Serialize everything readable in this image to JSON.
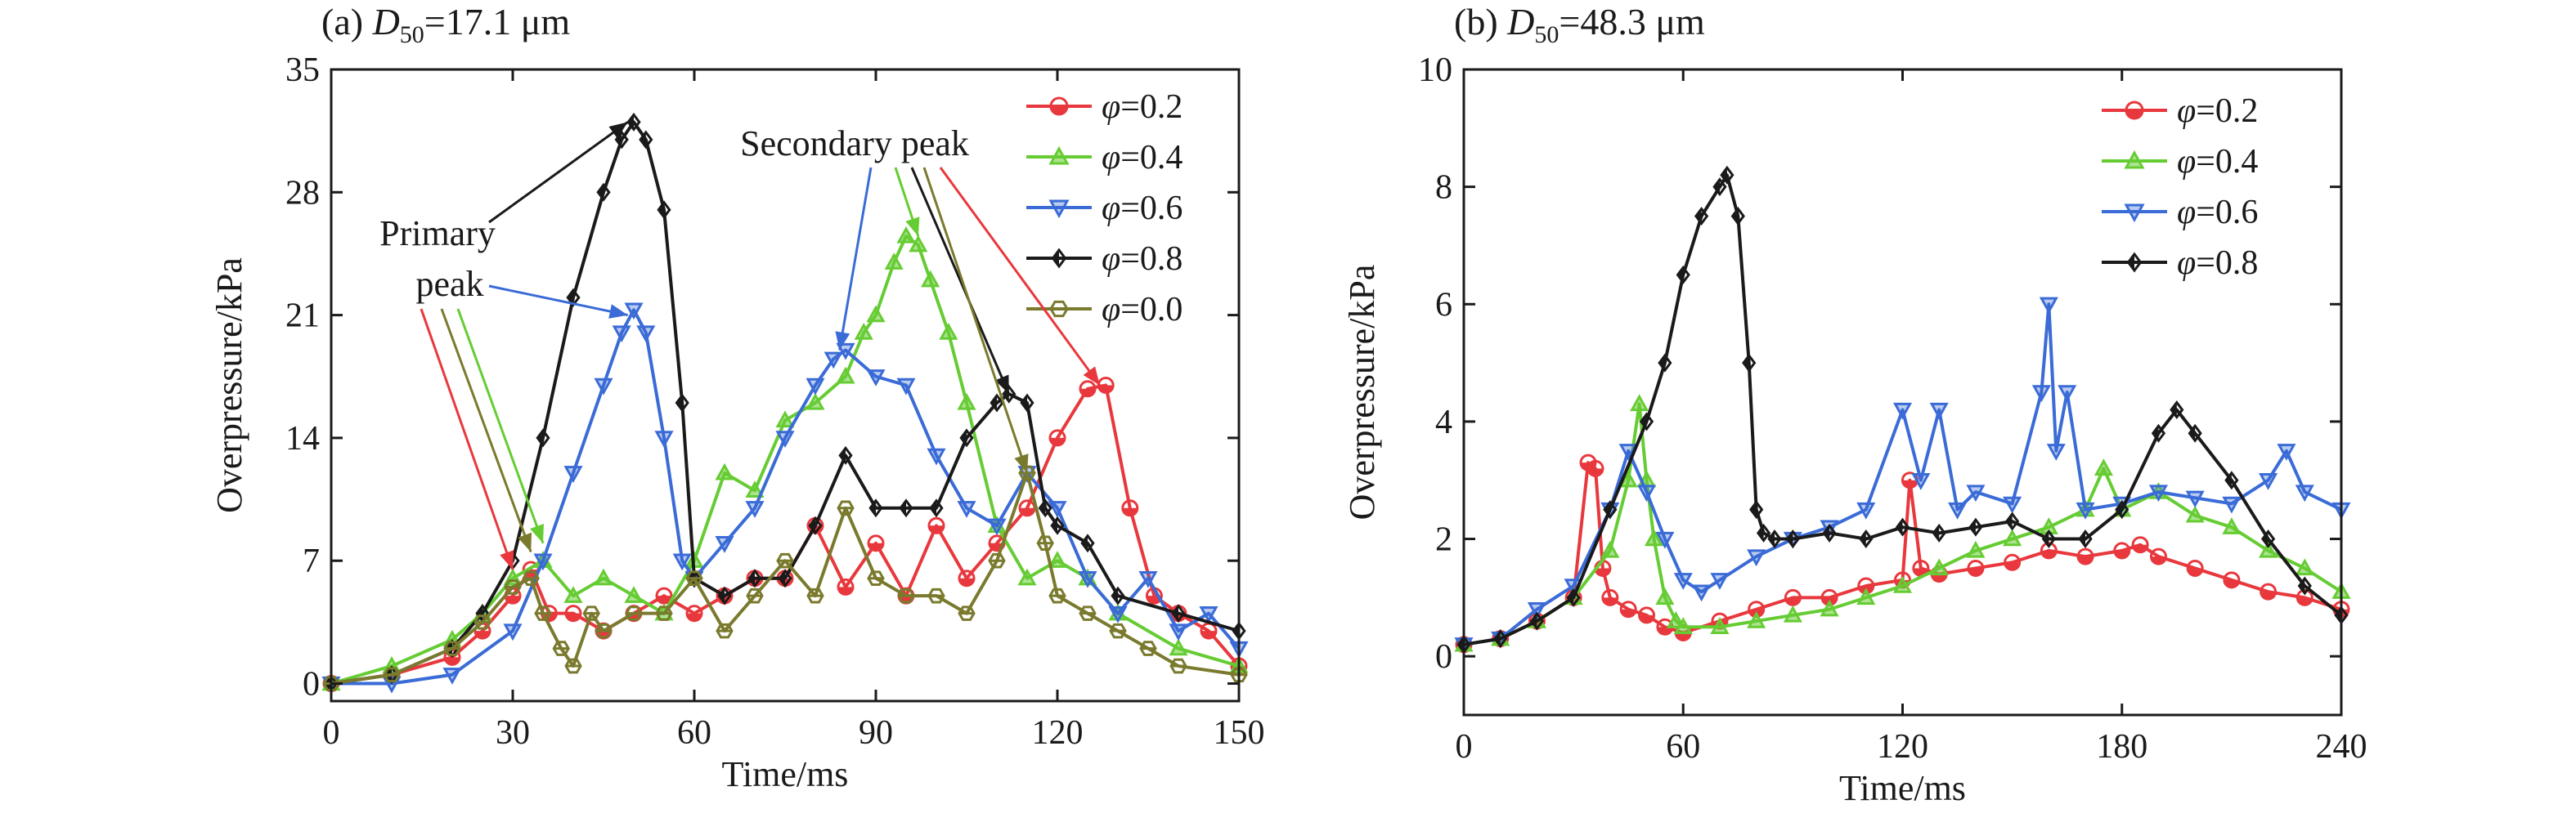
{
  "chart_data": [
    {
      "type": "line",
      "title_prefix": "(a)",
      "title_var": "D",
      "title_sub": "50",
      "title_value": "=17.1 μm",
      "xlabel": "Time/ms",
      "ylabel": "Overpressure/kPa",
      "xlim": [
        0,
        150
      ],
      "ylim": [
        -1,
        35
      ],
      "xticks": [
        0,
        30,
        60,
        90,
        120,
        150
      ],
      "yticks": [
        0,
        7,
        14,
        21,
        28,
        35
      ],
      "legend_position": "top-right",
      "annotations": [
        {
          "text": "Primary",
          "id": "primary-1"
        },
        {
          "text": "peak",
          "id": "primary-2"
        },
        {
          "text": "Secondary peak",
          "id": "secondary"
        }
      ],
      "series": [
        {
          "name": "φ=0.2",
          "symbol": "φ",
          "value_text": "=0.2",
          "marker": "circle",
          "color": "#e8383d",
          "x": [
            0,
            10,
            20,
            25,
            30,
            33,
            36,
            40,
            45,
            50,
            55,
            60,
            65,
            70,
            75,
            80,
            85,
            90,
            95,
            100,
            105,
            110,
            115,
            120,
            125,
            128,
            132,
            136,
            140,
            145,
            150
          ],
          "y": [
            0,
            0.5,
            1.5,
            3,
            5,
            6.5,
            4,
            4,
            3,
            4,
            5,
            4,
            5,
            6,
            6,
            9,
            5.5,
            8,
            5,
            9,
            6,
            8,
            10,
            14,
            16.8,
            17,
            10,
            5,
            4,
            3,
            1
          ]
        },
        {
          "name": "φ=0.4",
          "symbol": "φ",
          "value_text": "=0.4",
          "marker": "triangle-up",
          "color": "#66cc33",
          "x": [
            0,
            10,
            20,
            25,
            30,
            35,
            40,
            45,
            50,
            55,
            60,
            65,
            70,
            75,
            80,
            85,
            88,
            90,
            93,
            95,
            97,
            99,
            102,
            105,
            110,
            115,
            120,
            125,
            130,
            140,
            150
          ],
          "y": [
            0,
            1,
            2.5,
            4,
            6,
            7,
            5,
            6,
            5,
            4,
            7,
            12,
            11,
            15,
            16,
            17.5,
            20,
            21,
            24,
            25.5,
            25,
            23,
            20,
            16,
            9,
            6,
            7,
            6,
            4,
            2,
            1
          ]
        },
        {
          "name": "φ=0.6",
          "symbol": "φ",
          "value_text": "=0.6",
          "marker": "triangle-down",
          "color": "#3a6bd6",
          "x": [
            0,
            10,
            20,
            30,
            35,
            40,
            45,
            48,
            50,
            52,
            55,
            58,
            60,
            65,
            70,
            75,
            80,
            83,
            85,
            90,
            95,
            100,
            105,
            110,
            115,
            120,
            125,
            130,
            135,
            140,
            145,
            150
          ],
          "y": [
            0,
            0,
            0.5,
            3,
            7,
            12,
            17,
            20,
            21.3,
            20,
            14,
            7,
            6,
            8,
            10,
            14,
            17,
            18.5,
            19,
            17.5,
            17,
            13,
            10,
            9,
            12,
            10,
            6,
            4,
            6,
            3,
            4,
            2
          ]
        },
        {
          "name": "φ=0.8",
          "symbol": "φ",
          "value_text": "=0.8",
          "marker": "diamond",
          "color": "#1a1a1a",
          "x": [
            0,
            10,
            20,
            25,
            30,
            35,
            40,
            45,
            48,
            50,
            52,
            55,
            58,
            60,
            65,
            70,
            75,
            80,
            85,
            90,
            95,
            100,
            105,
            110,
            112,
            115,
            118,
            120,
            125,
            130,
            140,
            150
          ],
          "y": [
            0,
            0.5,
            2,
            4,
            7,
            14,
            22,
            28,
            31,
            32,
            31,
            27,
            16,
            6,
            5,
            6,
            6,
            9,
            13,
            10,
            10,
            10,
            14,
            16,
            16.5,
            16,
            10,
            9,
            8,
            5,
            4,
            3
          ]
        },
        {
          "name": "φ=0.0",
          "symbol": "φ",
          "value_text": "=0.0",
          "marker": "hexagon",
          "color": "#7a7a2e",
          "x": [
            0,
            10,
            20,
            25,
            30,
            33,
            35,
            38,
            40,
            43,
            45,
            50,
            55,
            60,
            65,
            70,
            75,
            80,
            85,
            90,
            95,
            100,
            105,
            110,
            115,
            118,
            120,
            125,
            130,
            135,
            140,
            150
          ],
          "y": [
            0,
            0.5,
            2,
            3.5,
            5.5,
            6,
            4,
            2,
            1,
            4,
            3,
            4,
            4,
            6,
            3,
            5,
            7,
            5,
            10,
            6,
            5,
            5,
            4,
            7,
            12,
            8,
            5,
            4,
            3,
            2,
            1,
            0.5
          ]
        }
      ]
    },
    {
      "type": "line",
      "title_prefix": "(b)",
      "title_var": "D",
      "title_sub": "50",
      "title_value": "=48.3 μm",
      "xlabel": "Time/ms",
      "ylabel": "Overpressure/kPa",
      "xlim": [
        0,
        240
      ],
      "ylim": [
        -1,
        10
      ],
      "xticks": [
        0,
        60,
        120,
        180,
        240
      ],
      "yticks": [
        0,
        2,
        4,
        6,
        8,
        10
      ],
      "legend_position": "top-right",
      "series": [
        {
          "name": "φ=0.2",
          "symbol": "φ",
          "value_text": "=0.2",
          "marker": "circle",
          "color": "#e8383d",
          "x": [
            0,
            10,
            20,
            30,
            34,
            36,
            38,
            40,
            45,
            50,
            55,
            60,
            70,
            80,
            90,
            100,
            110,
            120,
            122,
            125,
            130,
            140,
            150,
            160,
            170,
            180,
            185,
            190,
            200,
            210,
            220,
            230,
            240
          ],
          "y": [
            0.2,
            0.3,
            0.6,
            1,
            3.3,
            3.2,
            1.5,
            1,
            0.8,
            0.7,
            0.5,
            0.4,
            0.6,
            0.8,
            1,
            1,
            1.2,
            1.3,
            3.0,
            1.5,
            1.4,
            1.5,
            1.6,
            1.8,
            1.7,
            1.8,
            1.9,
            1.7,
            1.5,
            1.3,
            1.1,
            1,
            0.8
          ]
        },
        {
          "name": "φ=0.4",
          "symbol": "φ",
          "value_text": "=0.4",
          "marker": "triangle-up",
          "color": "#66cc33",
          "x": [
            0,
            10,
            20,
            30,
            40,
            45,
            48,
            50,
            52,
            55,
            58,
            60,
            70,
            80,
            90,
            100,
            110,
            120,
            130,
            140,
            150,
            160,
            170,
            175,
            180,
            190,
            200,
            210,
            220,
            230,
            240
          ],
          "y": [
            0.2,
            0.3,
            0.6,
            1,
            1.8,
            3,
            4.3,
            3,
            2,
            1,
            0.6,
            0.5,
            0.5,
            0.6,
            0.7,
            0.8,
            1,
            1.2,
            1.5,
            1.8,
            2,
            2.2,
            2.5,
            3.2,
            2.5,
            2.8,
            2.4,
            2.2,
            1.8,
            1.5,
            1.1
          ]
        },
        {
          "name": "φ=0.6",
          "symbol": "φ",
          "value_text": "=0.6",
          "marker": "triangle-down",
          "color": "#3a6bd6",
          "x": [
            0,
            10,
            20,
            30,
            40,
            45,
            50,
            55,
            60,
            65,
            70,
            80,
            90,
            100,
            110,
            120,
            125,
            130,
            135,
            140,
            150,
            158,
            160,
            162,
            165,
            170,
            180,
            190,
            200,
            210,
            220,
            225,
            230,
            240
          ],
          "y": [
            0.2,
            0.3,
            0.8,
            1.2,
            2.5,
            3.5,
            2.8,
            2,
            1.3,
            1.1,
            1.3,
            1.7,
            2,
            2.2,
            2.5,
            4.2,
            3,
            4.2,
            2.5,
            2.8,
            2.6,
            4.5,
            6,
            3.5,
            4.5,
            2.5,
            2.6,
            2.8,
            2.7,
            2.6,
            3,
            3.5,
            2.8,
            2.5
          ]
        },
        {
          "name": "φ=0.8",
          "symbol": "φ",
          "value_text": "=0.8",
          "marker": "diamond",
          "color": "#1a1a1a",
          "x": [
            0,
            10,
            20,
            30,
            40,
            50,
            55,
            60,
            65,
            70,
            72,
            75,
            78,
            80,
            82,
            85,
            90,
            100,
            110,
            120,
            130,
            140,
            150,
            160,
            170,
            180,
            190,
            195,
            200,
            210,
            220,
            230,
            240
          ],
          "y": [
            0.2,
            0.3,
            0.6,
            1,
            2.5,
            4,
            5,
            6.5,
            7.5,
            8,
            8.2,
            7.5,
            5,
            2.5,
            2.1,
            2,
            2,
            2.1,
            2,
            2.2,
            2.1,
            2.2,
            2.3,
            2,
            2,
            2.5,
            3.8,
            4.2,
            3.8,
            3,
            2,
            1.2,
            0.7
          ]
        }
      ]
    }
  ]
}
